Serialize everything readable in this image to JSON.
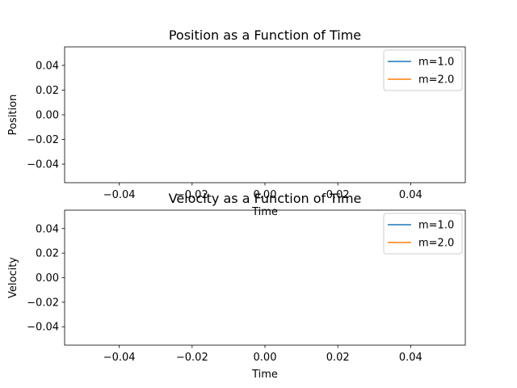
{
  "chart_data": [
    {
      "type": "line",
      "title": "Position as a Function of Time",
      "xlabel": "Time",
      "ylabel": "Position",
      "xlim": [
        -0.055,
        0.055
      ],
      "ylim": [
        -0.055,
        0.055
      ],
      "xticks": [
        -0.04,
        -0.02,
        0.0,
        0.02,
        0.04
      ],
      "yticks": [
        -0.04,
        -0.02,
        0.0,
        0.02,
        0.04
      ],
      "xtick_labels": [
        "−0.04",
        "−0.02",
        "0.00",
        "0.02",
        "0.04"
      ],
      "ytick_labels": [
        "−0.04",
        "−0.02",
        "0.00",
        "0.02",
        "0.04"
      ],
      "grid": false,
      "legend": "top-right",
      "series": [
        {
          "name": "m=1.0",
          "color": "#1f77b4",
          "x": [],
          "y": []
        },
        {
          "name": "m=2.0",
          "color": "#ff7f0e",
          "x": [],
          "y": []
        }
      ]
    },
    {
      "type": "line",
      "title": "Velocity as a Function of Time",
      "xlabel": "Time",
      "ylabel": "Velocity",
      "xlim": [
        -0.055,
        0.055
      ],
      "ylim": [
        -0.055,
        0.055
      ],
      "xticks": [
        -0.04,
        -0.02,
        0.0,
        0.02,
        0.04
      ],
      "yticks": [
        -0.04,
        -0.02,
        0.0,
        0.02,
        0.04
      ],
      "xtick_labels": [
        "−0.04",
        "−0.02",
        "0.00",
        "0.02",
        "0.04"
      ],
      "ytick_labels": [
        "−0.04",
        "−0.02",
        "0.00",
        "0.02",
        "0.04"
      ],
      "grid": false,
      "legend": "top-right",
      "series": [
        {
          "name": "m=1.0",
          "color": "#1f77b4",
          "x": [],
          "y": []
        },
        {
          "name": "m=2.0",
          "color": "#ff7f0e",
          "x": [],
          "y": []
        }
      ]
    }
  ]
}
